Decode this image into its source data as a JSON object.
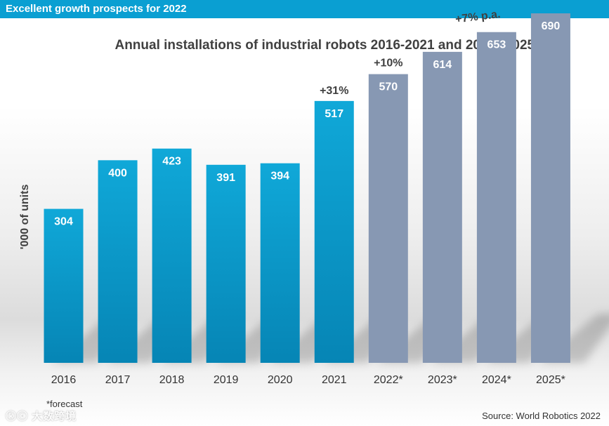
{
  "header": {
    "title": "Excellent growth prospects for 2022"
  },
  "chart_data": {
    "type": "bar",
    "title": "Annual installations of industrial robots 2016-2021 and 2022*-2025*",
    "ylabel": "'000 of units",
    "xlabel": "",
    "categories": [
      "2016",
      "2017",
      "2018",
      "2019",
      "2020",
      "2021",
      "2022*",
      "2023*",
      "2024*",
      "2025*"
    ],
    "values": [
      304,
      400,
      423,
      391,
      394,
      517,
      570,
      614,
      653,
      690
    ],
    "forecast_flags": [
      false,
      false,
      false,
      false,
      false,
      false,
      true,
      true,
      true,
      true
    ],
    "ylim": [
      0,
      720
    ],
    "grid": false,
    "legend": "none",
    "annotations": [
      {
        "text": "+31%",
        "at": "2021"
      },
      {
        "text": "+10%",
        "at": "2022*"
      },
      {
        "text": "+7% p.a.",
        "at": "2023*-2025*"
      }
    ],
    "colors": {
      "actual_top": "#10a8d8",
      "actual_bottom": "#0685b5",
      "forecast": "#8798b3"
    }
  },
  "footnote": "*forecast",
  "source": "Source: World Robotics 2022",
  "watermark": "大数跨境"
}
